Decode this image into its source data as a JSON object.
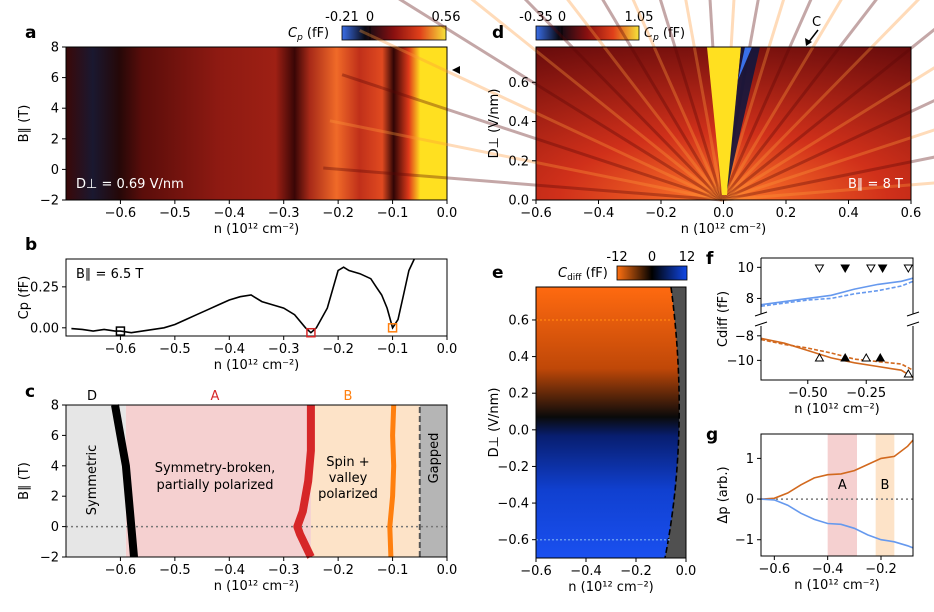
{
  "chart_data": [
    {
      "panel": "a",
      "type": "heatmap",
      "xlabel": "n (10¹² cm⁻²)",
      "ylabel": "B∥ (T)",
      "xlim": [
        -0.7,
        0.0
      ],
      "ylim": [
        -2,
        8
      ],
      "xticks": [
        "−0.6",
        "−0.5",
        "−0.4",
        "−0.3",
        "−0.2",
        "−0.1",
        "0.0"
      ],
      "yticks": [
        "−2",
        "0",
        "2",
        "4",
        "6",
        "8"
      ],
      "colorbar": {
        "label": "Cp (fF)",
        "ticks": [
          "-0.21",
          "0",
          "0.56"
        ]
      },
      "annotation": "D⊥ = 0.69 V/nm",
      "features_n": [
        -0.6,
        -0.28,
        -0.2,
        -0.1,
        -0.05
      ],
      "marker": {
        "B": 6.5,
        "shape": "triangle-left"
      }
    },
    {
      "panel": "b",
      "type": "line",
      "xlabel": "n (10¹² cm⁻²)",
      "ylabel": "Cp (fF)",
      "xlim": [
        -0.7,
        0.0
      ],
      "ylim": [
        -0.05,
        0.42
      ],
      "xticks": [
        "−0.6",
        "−0.5",
        "−0.4",
        "−0.3",
        "−0.2",
        "−0.1",
        "0.0"
      ],
      "yticks": [
        "0.00",
        "0.25"
      ],
      "annotation": "B∥ = 6.5 T",
      "x": [
        -0.69,
        -0.67,
        -0.65,
        -0.63,
        -0.61,
        -0.6,
        -0.58,
        -0.56,
        -0.54,
        -0.52,
        -0.5,
        -0.48,
        -0.46,
        -0.44,
        -0.42,
        -0.4,
        -0.38,
        -0.36,
        -0.34,
        -0.32,
        -0.3,
        -0.28,
        -0.26,
        -0.25,
        -0.24,
        -0.22,
        -0.2,
        -0.19,
        -0.18,
        -0.16,
        -0.14,
        -0.13,
        -0.12,
        -0.11,
        -0.1,
        -0.09,
        -0.08,
        -0.07,
        -0.06
      ],
      "values": [
        -0.005,
        -0.01,
        -0.02,
        -0.01,
        -0.02,
        -0.02,
        -0.03,
        -0.02,
        -0.01,
        0.0,
        0.02,
        0.05,
        0.08,
        0.11,
        0.14,
        0.17,
        0.19,
        0.2,
        0.16,
        0.14,
        0.12,
        0.08,
        0.0,
        -0.03,
        0.0,
        0.12,
        0.35,
        0.37,
        0.35,
        0.33,
        0.3,
        0.25,
        0.2,
        0.12,
        0.0,
        0.05,
        0.2,
        0.35,
        0.42
      ],
      "markers": [
        {
          "n": -0.6,
          "value": -0.02,
          "color": "#000000"
        },
        {
          "n": -0.25,
          "value": -0.03,
          "color": "#d62728"
        },
        {
          "n": -0.1,
          "value": 0.0,
          "color": "#ff7f0e"
        }
      ]
    },
    {
      "panel": "c",
      "type": "phase-diagram",
      "xlabel": "n (10¹² cm⁻²)",
      "ylabel": "B∥ (T)",
      "xlim": [
        -0.7,
        0.0
      ],
      "ylim": [
        -2,
        8
      ],
      "xticks": [
        "−0.6",
        "−0.5",
        "−0.4",
        "−0.3",
        "−0.2",
        "−0.1",
        "0.0"
      ],
      "yticks": [
        "−2",
        "0",
        "2",
        "4",
        "6",
        "8"
      ],
      "regions": [
        {
          "letter": "D",
          "text": "Symmetric",
          "color": "#e6e6e6",
          "n_range": [
            -0.7,
            -0.59
          ]
        },
        {
          "letter": "A",
          "text1": "Symmetry-broken,",
          "text2": "partially polarized",
          "color": "#f5d0d0",
          "n_range": [
            -0.59,
            -0.25
          ]
        },
        {
          "letter": "B",
          "text1": "Spin +",
          "text2": "valley",
          "text3": "polarized",
          "color": "#fde3c8",
          "n_range": [
            -0.25,
            -0.05
          ]
        },
        {
          "text": "Gapped",
          "color": "#b5b5b5",
          "n_range": [
            -0.05,
            0.0
          ]
        }
      ],
      "boundaries": [
        {
          "name": "D-A",
          "color": "#000000",
          "B": [
            -2,
            0,
            2,
            4,
            6,
            8
          ],
          "n": [
            -0.575,
            -0.58,
            -0.585,
            -0.59,
            -0.6,
            -0.61
          ]
        },
        {
          "name": "A-B",
          "color": "#d62728",
          "B": [
            -2,
            -0.5,
            0,
            1,
            3,
            5,
            8
          ],
          "n": [
            -0.25,
            -0.27,
            -0.275,
            -0.265,
            -0.255,
            -0.25,
            -0.25
          ]
        },
        {
          "name": "B-gapped",
          "color": "#ff7f0e",
          "B": [
            -2,
            0,
            2,
            4,
            6,
            8
          ],
          "n": [
            -0.103,
            -0.105,
            -0.1,
            -0.098,
            -0.1,
            -0.098
          ]
        },
        {
          "name": "gapped-edge",
          "color": "#555555",
          "B": [
            -2,
            8
          ],
          "n": [
            -0.05,
            -0.05
          ]
        }
      ]
    },
    {
      "panel": "d",
      "type": "heatmap",
      "xlabel": "n (10¹² cm⁻²)",
      "ylabel": "D⊥ (V/nm)",
      "xlim": [
        -0.6,
        0.6
      ],
      "ylim": [
        0.0,
        0.78
      ],
      "xticks": [
        "−0.6",
        "−0.4",
        "−0.2",
        "0.0",
        "0.2",
        "0.4",
        "0.6"
      ],
      "yticks": [
        "0.0",
        "0.2",
        "0.4",
        "0.6"
      ],
      "colorbar": {
        "label": "Cp (fF)",
        "ticks": [
          "-0.35",
          "0",
          "1.05"
        ]
      },
      "annotation": "B∥ = 8 T",
      "label_C": "C"
    },
    {
      "panel": "e",
      "type": "heatmap",
      "xlabel": "n (10¹² cm⁻²)",
      "ylabel": "D⊥ (V/nm)",
      "xlim": [
        -0.6,
        0.0
      ],
      "ylim": [
        -0.7,
        0.78
      ],
      "xticks": [
        "−0.6",
        "−0.4",
        "−0.2",
        "0.0"
      ],
      "yticks": [
        "−0.6",
        "−0.4",
        "−0.2",
        "0.0",
        "0.2",
        "0.4",
        "0.6"
      ],
      "colorbar": {
        "label": "Cdiff (fF)",
        "ticks": [
          "-12",
          "0",
          "12"
        ]
      },
      "cuts": [
        {
          "D": 0.6,
          "color": "#ff7f0e"
        },
        {
          "D": -0.6,
          "color": "#6699ee"
        }
      ]
    },
    {
      "panel": "f",
      "type": "line",
      "xlabel": "n (10¹² cm⁻²)",
      "ylabel": "Cdiff (fF)",
      "xlim": [
        -0.7,
        -0.05
      ],
      "xticks": [
        "−0.50",
        "−0.25"
      ],
      "yticks": [
        "10",
        "8",
        "−8",
        "−10"
      ],
      "series": [
        {
          "color": "#6699ee",
          "style": "solid",
          "x": [
            -0.7,
            -0.6,
            -0.5,
            -0.4,
            -0.3,
            -0.2,
            -0.1,
            -0.05
          ],
          "values": [
            7.6,
            7.8,
            8.0,
            8.2,
            8.6,
            8.9,
            9.1,
            9.3
          ]
        },
        {
          "color": "#6699ee",
          "style": "dashed",
          "x": [
            -0.7,
            -0.6,
            -0.5,
            -0.4,
            -0.3,
            -0.2,
            -0.1,
            -0.05
          ],
          "values": [
            7.5,
            7.7,
            7.9,
            8.0,
            8.3,
            8.5,
            8.8,
            9.1
          ]
        },
        {
          "color": "#d2691e",
          "style": "solid",
          "x": [
            -0.7,
            -0.6,
            -0.5,
            -0.4,
            -0.3,
            -0.2,
            -0.1,
            -0.05
          ],
          "values": [
            -8.2,
            -8.6,
            -9.2,
            -9.8,
            -10.2,
            -10.5,
            -10.8,
            -11.4
          ]
        },
        {
          "color": "#d2691e",
          "style": "dashed",
          "x": [
            -0.7,
            -0.6,
            -0.5,
            -0.4,
            -0.3,
            -0.2,
            -0.1,
            -0.05
          ],
          "values": [
            -8.3,
            -8.7,
            -9.0,
            -9.4,
            -9.9,
            -10.1,
            -10.3,
            -10.8
          ]
        }
      ],
      "markers_upper": [
        {
          "n": -0.45,
          "filled": false
        },
        {
          "n": -0.34,
          "filled": true
        },
        {
          "n": -0.23,
          "filled": false
        },
        {
          "n": -0.18,
          "filled": true
        },
        {
          "n": -0.07,
          "filled": false
        }
      ],
      "markers_lower": [
        {
          "n": -0.45,
          "filled": false
        },
        {
          "n": -0.34,
          "filled": true
        },
        {
          "n": -0.25,
          "filled": false
        },
        {
          "n": -0.19,
          "filled": true
        },
        {
          "n": -0.07,
          "filled": false
        }
      ]
    },
    {
      "panel": "g",
      "type": "line",
      "xlabel": "n (10¹² cm⁻²)",
      "ylabel": "Δp (arb.)",
      "xlim": [
        -0.65,
        -0.08
      ],
      "ylim": [
        -1.4,
        1.6
      ],
      "xticks": [
        "−0.6",
        "−0.4",
        "−0.2"
      ],
      "yticks": [
        "1",
        "0",
        "−1"
      ],
      "bands": [
        {
          "letter": "A",
          "range": [
            -0.4,
            -0.29
          ],
          "color": "#f5d0d0"
        },
        {
          "letter": "B",
          "range": [
            -0.22,
            -0.15
          ],
          "color": "#fde3c8"
        }
      ],
      "series": [
        {
          "color": "#d2691e",
          "x": [
            -0.65,
            -0.6,
            -0.55,
            -0.5,
            -0.45,
            -0.4,
            -0.35,
            -0.3,
            -0.25,
            -0.2,
            -0.15,
            -0.1,
            -0.08
          ],
          "values": [
            0.0,
            0.02,
            0.15,
            0.35,
            0.52,
            0.6,
            0.62,
            0.7,
            0.85,
            1.0,
            1.05,
            1.3,
            1.45
          ]
        },
        {
          "color": "#6699ee",
          "x": [
            -0.65,
            -0.6,
            -0.55,
            -0.5,
            -0.45,
            -0.4,
            -0.35,
            -0.3,
            -0.25,
            -0.2,
            -0.15,
            -0.1,
            -0.08
          ],
          "values": [
            0.0,
            -0.02,
            -0.15,
            -0.35,
            -0.5,
            -0.6,
            -0.62,
            -0.72,
            -0.88,
            -1.0,
            -1.05,
            -1.15,
            -1.2
          ]
        }
      ]
    }
  ],
  "labels": {
    "a": "a",
    "b": "b",
    "c": "c",
    "d": "d",
    "e": "e",
    "f": "f",
    "g": "g",
    "nlabel": "n (10¹² cm⁻²)",
    "bpar": "B∥ (T)",
    "cp": "Cp (fF)",
    "dperp": "D⊥ (V/nm)",
    "cdiff": "Cdiff (fF)",
    "deltap": "Δp (arb.)"
  }
}
